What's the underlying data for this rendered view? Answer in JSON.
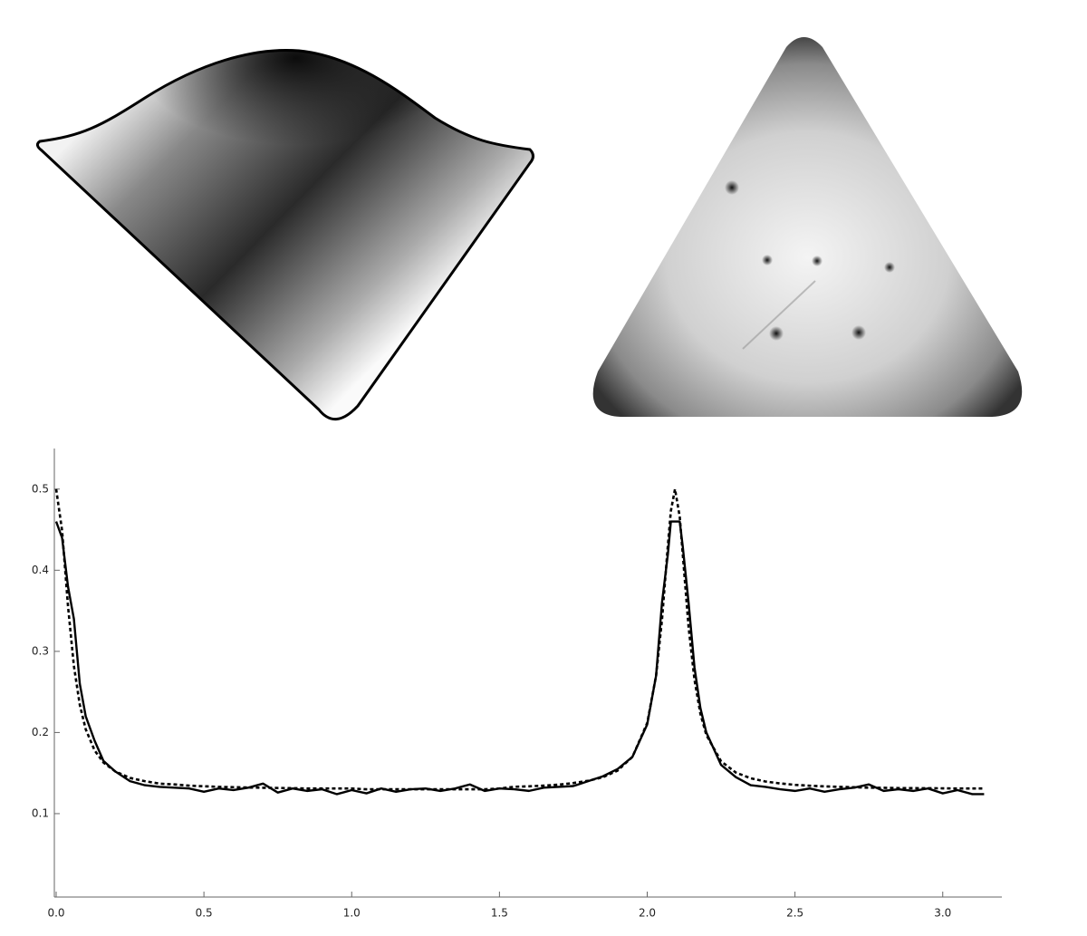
{
  "chart_data": {
    "type": "line",
    "x": [
      0,
      0.02,
      0.04,
      0.06,
      0.08,
      0.1,
      0.13,
      0.16,
      0.2,
      0.25,
      0.3,
      0.35,
      0.4,
      0.45,
      0.5,
      0.55,
      0.6,
      0.65,
      0.7,
      0.75,
      0.8,
      0.85,
      0.9,
      0.95,
      1.0,
      1.05,
      1.1,
      1.15,
      1.2,
      1.25,
      1.3,
      1.35,
      1.4,
      1.45,
      1.5,
      1.55,
      1.6,
      1.65,
      1.7,
      1.75,
      1.8,
      1.85,
      1.9,
      1.95,
      2.0,
      2.03,
      2.05,
      2.07,
      2.08,
      2.094,
      2.11,
      2.12,
      2.14,
      2.16,
      2.18,
      2.2,
      2.25,
      2.3,
      2.35,
      2.4,
      2.45,
      2.5,
      2.55,
      2.6,
      2.65,
      2.7,
      2.75,
      2.8,
      2.85,
      2.9,
      2.95,
      3.0,
      3.05,
      3.1,
      3.14
    ],
    "series": [
      {
        "color": "#000000",
        "dashed": false,
        "values": [
          0.46,
          0.44,
          0.38,
          0.34,
          0.26,
          0.22,
          0.19,
          0.165,
          0.152,
          0.14,
          0.135,
          0.133,
          0.132,
          0.131,
          0.127,
          0.131,
          0.129,
          0.132,
          0.137,
          0.126,
          0.131,
          0.128,
          0.13,
          0.124,
          0.129,
          0.125,
          0.131,
          0.127,
          0.13,
          0.131,
          0.128,
          0.131,
          0.136,
          0.128,
          0.131,
          0.13,
          0.128,
          0.132,
          0.133,
          0.134,
          0.14,
          0.146,
          0.155,
          0.17,
          0.21,
          0.27,
          0.36,
          0.42,
          0.46,
          0.46,
          0.46,
          0.43,
          0.36,
          0.28,
          0.23,
          0.2,
          0.16,
          0.145,
          0.135,
          0.133,
          0.13,
          0.128,
          0.131,
          0.127,
          0.13,
          0.132,
          0.136,
          0.128,
          0.13,
          0.128,
          0.131,
          0.125,
          0.129,
          0.124,
          0.124
        ]
      },
      {
        "color": "#000000",
        "dashed": true,
        "values": [
          0.5,
          0.449,
          0.356,
          0.282,
          0.234,
          0.204,
          0.178,
          0.163,
          0.152,
          0.144,
          0.14,
          0.137,
          0.136,
          0.1345,
          0.1337,
          0.133,
          0.1326,
          0.1322,
          0.1319,
          0.1316,
          0.1314,
          0.131,
          0.131,
          0.131,
          0.131,
          0.13,
          0.13,
          0.13,
          0.13,
          0.13,
          0.13,
          0.13,
          0.13,
          0.13,
          0.131,
          0.1331,
          0.1337,
          0.1345,
          0.1357,
          0.1377,
          0.1405,
          0.1449,
          0.1531,
          0.17,
          0.2117,
          0.27,
          0.339,
          0.431,
          0.473,
          0.5,
          0.466,
          0.421,
          0.33,
          0.265,
          0.223,
          0.197,
          0.1645,
          0.1506,
          0.1436,
          0.1396,
          0.1372,
          0.1355,
          0.1344,
          0.1336,
          0.133,
          0.1325,
          0.132,
          0.1318,
          0.1315,
          0.1314,
          0.1313,
          0.1312,
          0.131,
          0.131,
          0.131
        ]
      }
    ],
    "xlim": [
      0,
      3.2
    ],
    "ylim": [
      0,
      0.55
    ],
    "xticks": [
      {
        "value": 0,
        "label": "0.0"
      },
      0.5,
      {
        "value": 1,
        "label": "1.0"
      },
      1.5,
      {
        "value": 2,
        "label": "2.0"
      },
      2.5,
      {
        "value": 3,
        "label": "3.0"
      }
    ],
    "yticks": [
      0.1,
      0.2,
      0.3,
      0.4,
      0.5
    ],
    "grid": false
  }
}
